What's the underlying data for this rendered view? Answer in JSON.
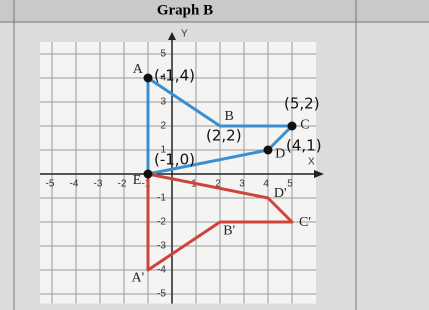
{
  "header": {
    "title": "Graph B"
  },
  "chart_data": {
    "type": "polygon",
    "xlabel": "X",
    "ylabel": "Y",
    "xlim": [
      -5.5,
      6
    ],
    "ylim": [
      -5.4,
      5.5
    ],
    "xticks": [
      -5,
      -4,
      -3,
      -2,
      -1,
      1,
      2,
      3,
      4,
      5
    ],
    "yticks": [
      5,
      4,
      3,
      2,
      1,
      -1,
      -2,
      -3,
      -4,
      -5
    ],
    "grid": true,
    "series": [
      {
        "color": "#3a8fd0",
        "x": [
          -1,
          2,
          5,
          4,
          -1
        ],
        "values": [
          4,
          2,
          2,
          1,
          0
        ],
        "point_labels": [
          "A",
          "B",
          "C",
          "D",
          "E"
        ]
      },
      {
        "color": "#d0433c",
        "x": [
          -1,
          2,
          5,
          4,
          -1
        ],
        "values": [
          -4,
          -2,
          -2,
          -1,
          0
        ],
        "point_labels": [
          "A'",
          "B'",
          "C'",
          "D'",
          null
        ]
      }
    ],
    "annotations": [
      {
        "text": "(-1,4)",
        "x": -1,
        "y": 4
      },
      {
        "text": "(2,2)",
        "x": 2,
        "y": 2
      },
      {
        "text": "(5,2)",
        "x": 5,
        "y": 2
      },
      {
        "text": "(4,1)",
        "x": 4,
        "y": 1
      },
      {
        "text": "(-1,0)",
        "x": -1,
        "y": 0
      }
    ]
  }
}
